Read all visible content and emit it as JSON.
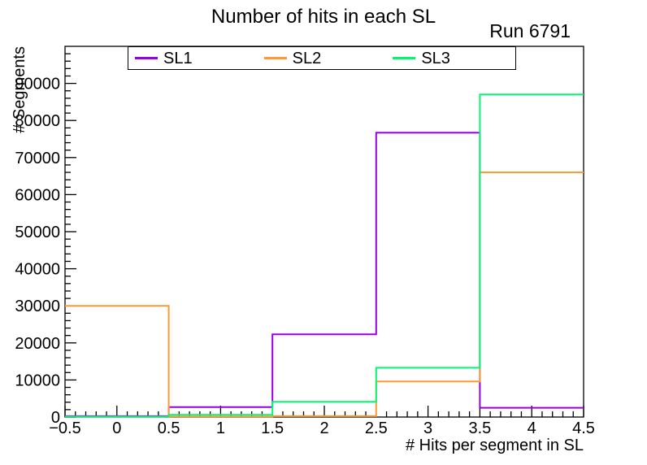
{
  "chart_data": {
    "type": "step-histogram",
    "title": "Number of hits in each SL",
    "annotation": "Run 6791",
    "xlabel": "# Hits per segment in SL",
    "ylabel": "# Segments",
    "xlim": [
      -0.5,
      4.5
    ],
    "ylim": [
      0,
      100000
    ],
    "grid": false,
    "legend_position": "top-inside",
    "bin_edges": [
      -0.5,
      0.5,
      1.5,
      2.5,
      3.5,
      4.5
    ],
    "bin_centers": [
      0,
      1,
      2,
      3,
      4
    ],
    "x_tick_values": [
      -0.5,
      0,
      0.5,
      1,
      1.5,
      2,
      2.5,
      3,
      3.5,
      4,
      4.5
    ],
    "x_tick_labels": [
      "−0.5",
      "0",
      "0.5",
      "1",
      "1.5",
      "2",
      "2.5",
      "3",
      "3.5",
      "4",
      "4.5"
    ],
    "x_minor_step": 0.1,
    "y_tick_values": [
      0,
      10000,
      20000,
      30000,
      40000,
      50000,
      60000,
      70000,
      80000,
      90000
    ],
    "y_tick_labels": [
      "0",
      "10000",
      "20000",
      "30000",
      "40000",
      "50000",
      "60000",
      "70000",
      "80000",
      "90000"
    ],
    "y_minor_step": 2000,
    "axis_color": "#000000",
    "series": [
      {
        "name": "SL1",
        "color": "#9a00e6",
        "values": [
          250,
          2700,
          22300,
          76700,
          2500
        ]
      },
      {
        "name": "SL2",
        "color": "#ff9933",
        "values": [
          30000,
          150,
          250,
          9600,
          66000
        ]
      },
      {
        "name": "SL3",
        "color": "#00f96e",
        "values": [
          100,
          600,
          4100,
          13300,
          87000
        ]
      }
    ]
  }
}
